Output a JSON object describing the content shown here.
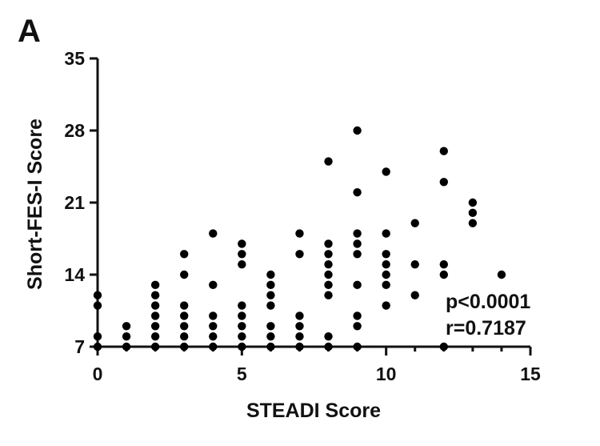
{
  "panel_label": "A",
  "chart_data": {
    "type": "scatter",
    "xlabel": "STEADI Score",
    "ylabel": "Short-FES-I Score",
    "xlim": [
      0,
      15
    ],
    "ylim": [
      7,
      35
    ],
    "x_ticks": [
      0,
      5,
      10,
      15
    ],
    "y_ticks": [
      7,
      14,
      21,
      28,
      35
    ],
    "grid": false,
    "annotations": [
      "p<0.0001",
      "r=0.7187"
    ],
    "marker_color": "#000000",
    "points": [
      [
        0,
        7
      ],
      [
        0,
        8
      ],
      [
        0,
        11
      ],
      [
        0,
        12
      ],
      [
        1,
        7
      ],
      [
        1,
        8
      ],
      [
        1,
        9
      ],
      [
        2,
        7
      ],
      [
        2,
        8
      ],
      [
        2,
        9
      ],
      [
        2,
        10
      ],
      [
        2,
        11
      ],
      [
        2,
        12
      ],
      [
        2,
        13
      ],
      [
        3,
        7
      ],
      [
        3,
        8
      ],
      [
        3,
        9
      ],
      [
        3,
        10
      ],
      [
        3,
        11
      ],
      [
        3,
        14
      ],
      [
        3,
        16
      ],
      [
        4,
        7
      ],
      [
        4,
        8
      ],
      [
        4,
        9
      ],
      [
        4,
        10
      ],
      [
        4,
        13
      ],
      [
        4,
        18
      ],
      [
        5,
        7
      ],
      [
        5,
        8
      ],
      [
        5,
        9
      ],
      [
        5,
        10
      ],
      [
        5,
        11
      ],
      [
        5,
        15
      ],
      [
        5,
        16
      ],
      [
        5,
        17
      ],
      [
        6,
        7
      ],
      [
        6,
        8
      ],
      [
        6,
        9
      ],
      [
        6,
        11
      ],
      [
        6,
        12
      ],
      [
        6,
        13
      ],
      [
        6,
        14
      ],
      [
        7,
        7
      ],
      [
        7,
        8
      ],
      [
        7,
        9
      ],
      [
        7,
        10
      ],
      [
        7,
        16
      ],
      [
        7,
        18
      ],
      [
        8,
        7
      ],
      [
        8,
        8
      ],
      [
        8,
        12
      ],
      [
        8,
        13
      ],
      [
        8,
        14
      ],
      [
        8,
        15
      ],
      [
        8,
        16
      ],
      [
        8,
        17
      ],
      [
        8,
        25
      ],
      [
        9,
        7
      ],
      [
        9,
        9
      ],
      [
        9,
        10
      ],
      [
        9,
        13
      ],
      [
        9,
        16
      ],
      [
        9,
        17
      ],
      [
        9,
        18
      ],
      [
        9,
        22
      ],
      [
        9,
        28
      ],
      [
        10,
        11
      ],
      [
        10,
        13
      ],
      [
        10,
        14
      ],
      [
        10,
        15
      ],
      [
        10,
        16
      ],
      [
        10,
        18
      ],
      [
        10,
        24
      ],
      [
        11,
        12
      ],
      [
        11,
        15
      ],
      [
        11,
        19
      ],
      [
        12,
        7
      ],
      [
        12,
        14
      ],
      [
        12,
        15
      ],
      [
        12,
        23
      ],
      [
        12,
        26
      ],
      [
        13,
        19
      ],
      [
        13,
        20
      ],
      [
        13,
        21
      ],
      [
        14,
        14
      ]
    ]
  }
}
